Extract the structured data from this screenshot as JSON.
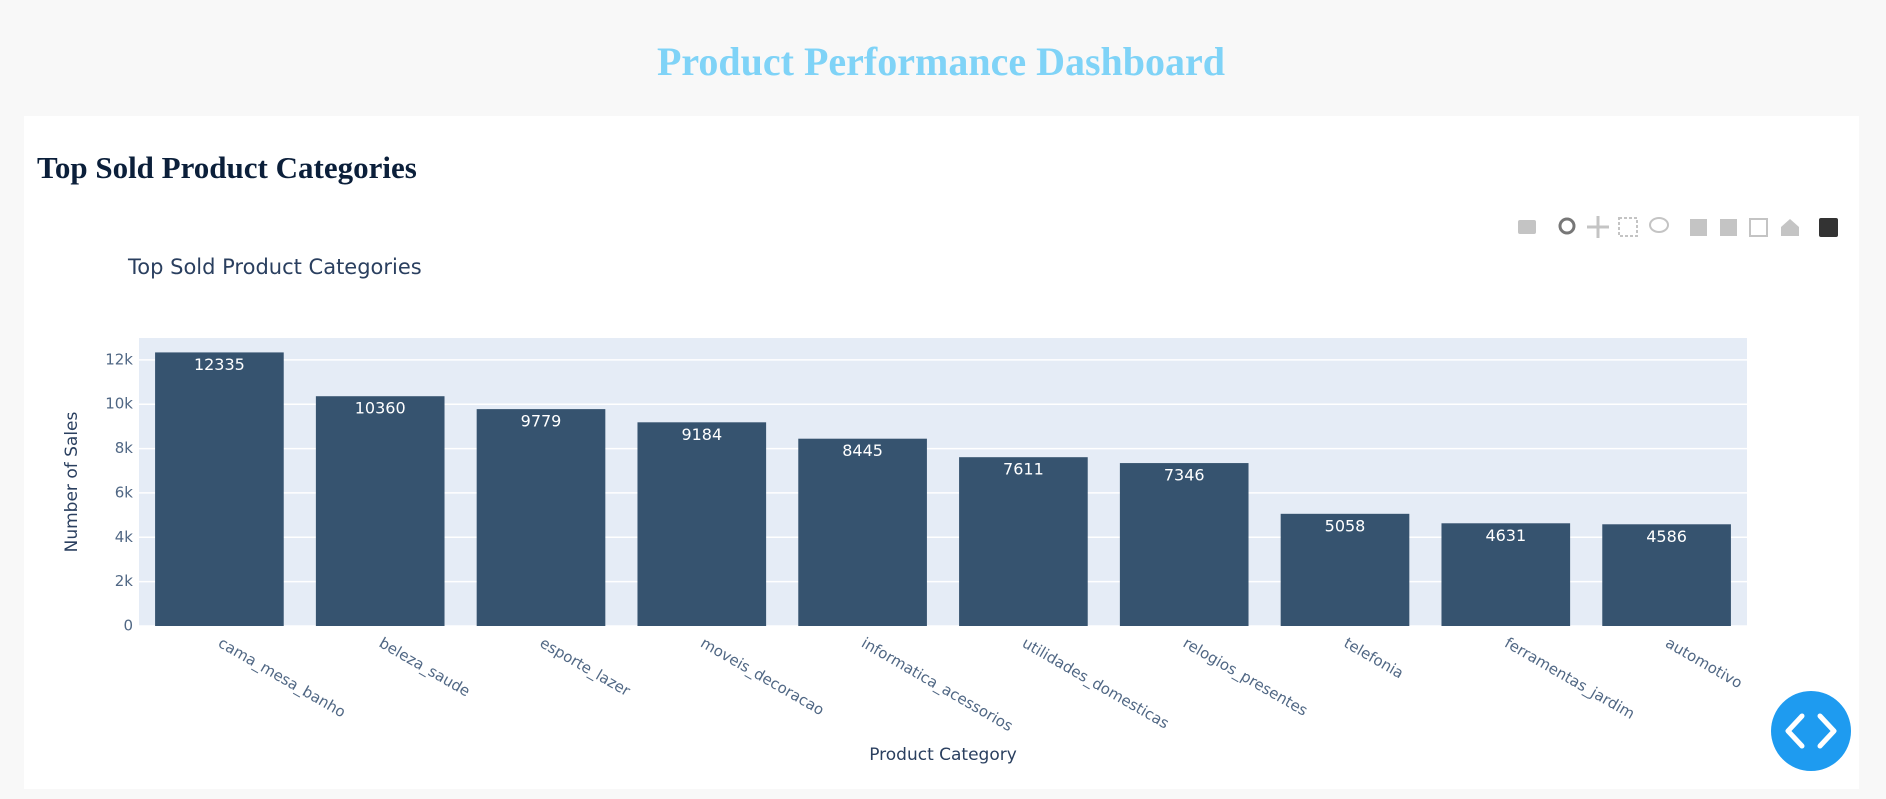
{
  "page": {
    "title": "Product Performance Dashboard",
    "section_title": "Top Sold Product Categories"
  },
  "chart_data": {
    "type": "bar",
    "title": "Top Sold Product Categories",
    "x_label": "Product Category",
    "y_label": "Number of Sales",
    "categories": [
      "cama_mesa_banho",
      "beleza_saude",
      "esporte_lazer",
      "moveis_decoracao",
      "informatica_acessorios",
      "utilidades_domesticas",
      "relogios_presentes",
      "telefonia",
      "ferramentas_jardim",
      "automotivo"
    ],
    "values": [
      12335,
      10360,
      9779,
      9184,
      8445,
      7611,
      7346,
      5058,
      4631,
      4586
    ],
    "color": "#36536f",
    "ylim": [
      0,
      12985
    ],
    "yticks": [
      0,
      {
        "value": 2000,
        "label": "2k"
      },
      {
        "value": 4000,
        "label": "4k"
      },
      {
        "value": 6000,
        "label": "6k"
      },
      {
        "value": 8000,
        "label": "8k"
      },
      {
        "value": 10000,
        "label": "10k"
      },
      {
        "value": 12000,
        "label": "12k"
      }
    ],
    "grid": true
  }
}
